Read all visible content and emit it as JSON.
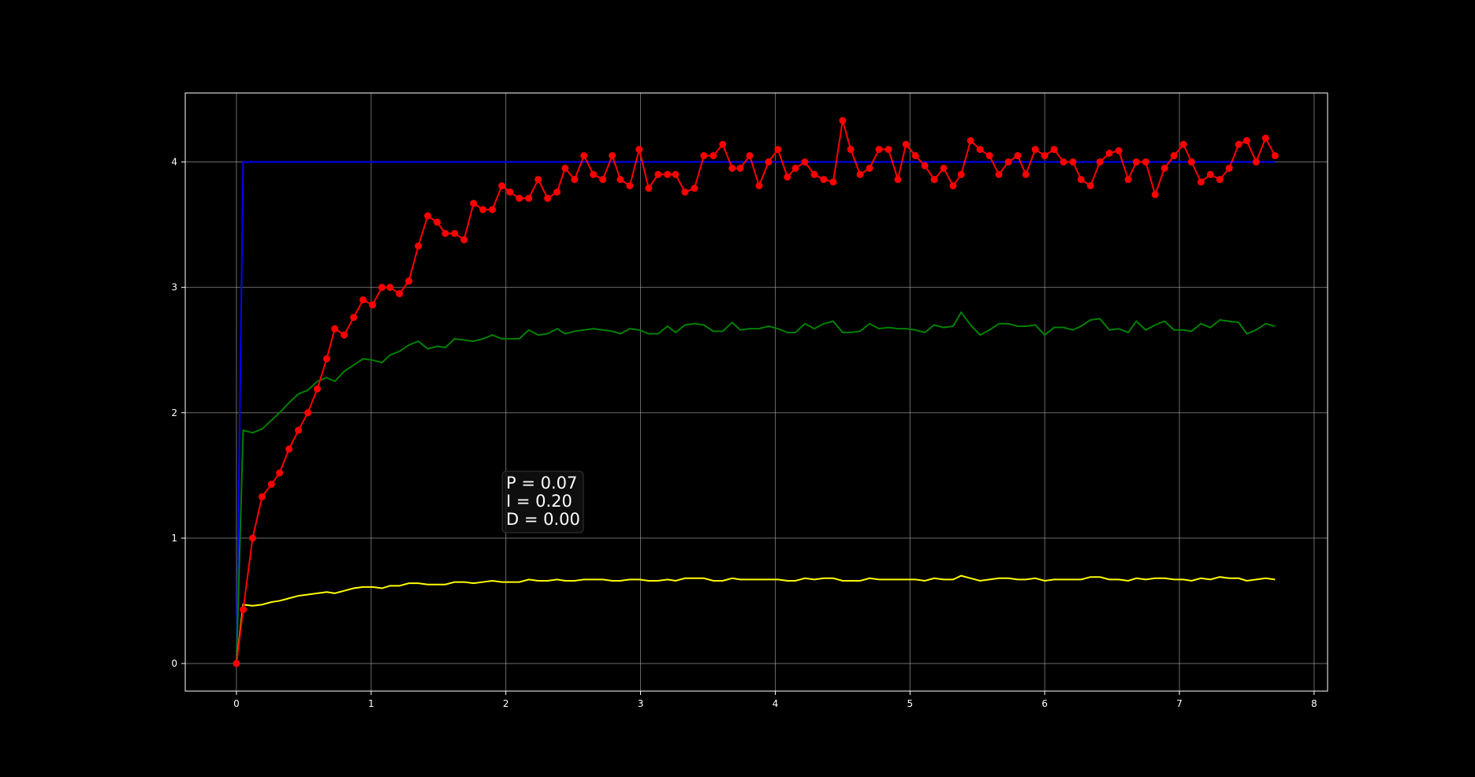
{
  "chart_data": {
    "type": "line",
    "x": [
      0,
      0.05,
      0.12,
      0.19,
      0.26,
      0.32,
      0.39,
      0.46,
      0.53,
      0.6,
      0.67,
      0.73,
      0.8,
      0.87,
      0.94,
      1.01,
      1.08,
      1.14,
      1.21,
      1.28,
      1.35,
      1.42,
      1.49,
      1.55,
      1.62,
      1.69,
      1.76,
      1.83,
      1.9,
      1.97,
      2.03,
      2.1,
      2.17,
      2.24,
      2.31,
      2.38,
      2.44,
      2.51,
      2.58,
      2.65,
      2.72,
      2.79,
      2.85,
      2.92,
      2.99,
      3.06,
      3.13,
      3.2,
      3.26,
      3.33,
      3.4,
      3.47,
      3.54,
      3.61,
      3.68,
      3.74,
      3.81,
      3.88,
      3.95,
      4.02,
      4.09,
      4.15,
      4.22,
      4.29,
      4.36,
      4.43,
      4.5,
      4.56,
      4.63,
      4.7,
      4.77,
      4.84,
      4.91,
      4.97,
      5.04,
      5.11,
      5.18,
      5.25,
      5.32,
      5.38,
      5.45,
      5.52,
      5.59,
      5.66,
      5.73,
      5.8,
      5.86,
      5.93,
      6.0,
      6.07,
      6.14,
      6.21,
      6.27,
      6.34,
      6.41,
      6.48,
      6.55,
      6.62,
      6.68,
      6.75,
      6.82,
      6.89,
      6.96,
      7.03,
      7.09,
      7.16,
      7.23,
      7.3,
      7.37,
      7.44,
      7.5,
      7.57,
      7.64,
      7.71
    ],
    "series": [
      {
        "color": "#0000ff",
        "x": [
          0,
          0.05,
          7.71
        ],
        "values": [
          0,
          4,
          4
        ]
      },
      {
        "color": "#008000",
        "values": [
          0,
          1.86,
          1.84,
          1.87,
          1.94,
          2.0,
          2.08,
          2.15,
          2.18,
          2.25,
          2.28,
          2.25,
          2.33,
          2.38,
          2.43,
          2.42,
          2.4,
          2.46,
          2.49,
          2.54,
          2.57,
          2.51,
          2.53,
          2.52,
          2.59,
          2.58,
          2.57,
          2.59,
          2.62,
          2.59,
          2.59,
          2.59,
          2.66,
          2.62,
          2.63,
          2.67,
          2.63,
          2.65,
          2.66,
          2.67,
          2.66,
          2.65,
          2.63,
          2.67,
          2.66,
          2.63,
          2.63,
          2.69,
          2.64,
          2.7,
          2.71,
          2.7,
          2.65,
          2.65,
          2.72,
          2.66,
          2.67,
          2.67,
          2.69,
          2.67,
          2.64,
          2.64,
          2.71,
          2.67,
          2.71,
          2.73,
          2.64,
          2.64,
          2.65,
          2.71,
          2.67,
          2.68,
          2.67,
          2.67,
          2.66,
          2.64,
          2.7,
          2.68,
          2.69,
          2.8,
          2.7,
          2.62,
          2.66,
          2.71,
          2.71,
          2.69,
          2.69,
          2.7,
          2.62,
          2.68,
          2.68,
          2.66,
          2.69,
          2.74,
          2.75,
          2.66,
          2.67,
          2.64,
          2.73,
          2.66,
          2.7,
          2.73,
          2.66,
          2.66,
          2.65,
          2.71,
          2.68,
          2.74,
          2.73,
          2.72,
          2.63,
          2.66,
          2.71,
          2.69
        ]
      },
      {
        "color": "#ffff00",
        "values": [
          0,
          0.47,
          0.46,
          0.47,
          0.49,
          0.5,
          0.52,
          0.54,
          0.55,
          0.56,
          0.57,
          0.56,
          0.58,
          0.6,
          0.61,
          0.61,
          0.6,
          0.62,
          0.62,
          0.64,
          0.64,
          0.63,
          0.63,
          0.63,
          0.65,
          0.65,
          0.64,
          0.65,
          0.66,
          0.65,
          0.65,
          0.65,
          0.67,
          0.66,
          0.66,
          0.67,
          0.66,
          0.66,
          0.67,
          0.67,
          0.67,
          0.66,
          0.66,
          0.67,
          0.67,
          0.66,
          0.66,
          0.67,
          0.66,
          0.68,
          0.68,
          0.68,
          0.66,
          0.66,
          0.68,
          0.67,
          0.67,
          0.67,
          0.67,
          0.67,
          0.66,
          0.66,
          0.68,
          0.67,
          0.68,
          0.68,
          0.66,
          0.66,
          0.66,
          0.68,
          0.67,
          0.67,
          0.67,
          0.67,
          0.67,
          0.66,
          0.68,
          0.67,
          0.67,
          0.7,
          0.68,
          0.66,
          0.67,
          0.68,
          0.68,
          0.67,
          0.67,
          0.68,
          0.66,
          0.67,
          0.67,
          0.67,
          0.67,
          0.69,
          0.69,
          0.67,
          0.67,
          0.66,
          0.68,
          0.67,
          0.68,
          0.68,
          0.67,
          0.67,
          0.66,
          0.68,
          0.67,
          0.69,
          0.68,
          0.68,
          0.66,
          0.67,
          0.68,
          0.67
        ]
      },
      {
        "color": "#ff0000",
        "marker": "o",
        "values": [
          0,
          0.43,
          1.0,
          1.33,
          1.43,
          1.52,
          1.71,
          1.86,
          2.0,
          2.19,
          2.43,
          2.67,
          2.62,
          2.76,
          2.9,
          2.86,
          3.0,
          3.0,
          2.95,
          3.05,
          3.33,
          3.57,
          3.52,
          3.43,
          3.43,
          3.38,
          3.67,
          3.62,
          3.62,
          3.81,
          3.76,
          3.71,
          3.71,
          3.86,
          3.71,
          3.76,
          3.95,
          3.86,
          4.05,
          3.9,
          3.86,
          4.05,
          3.86,
          3.81,
          4.1,
          3.79,
          3.9,
          3.9,
          3.9,
          3.76,
          3.79,
          4.05,
          4.05,
          4.14,
          3.95,
          3.95,
          4.05,
          3.81,
          4.0,
          4.1,
          3.88,
          3.95,
          4.0,
          3.9,
          3.86,
          3.84,
          4.33,
          4.1,
          3.9,
          3.95,
          4.1,
          4.1,
          3.86,
          4.14,
          4.05,
          3.97,
          3.86,
          3.95,
          3.81,
          3.9,
          4.17,
          4.1,
          4.05,
          3.9,
          4.0,
          4.05,
          3.9,
          4.1,
          4.05,
          4.1,
          4.0,
          4.0,
          3.86,
          3.81,
          4.0,
          4.07,
          4.09,
          3.86,
          4.0,
          4.0,
          3.74,
          3.95,
          4.05,
          4.14,
          4.0,
          3.84,
          3.9,
          3.86,
          3.95,
          4.14,
          4.17,
          4.0,
          4.19,
          4.05
        ]
      }
    ],
    "annotation": [
      "P = 0.07",
      "I = 0.20",
      "D = 0.00"
    ],
    "xlim": [
      -0.38,
      8.1
    ],
    "ylim": [
      -0.22,
      4.55
    ],
    "xticks": [
      0,
      1,
      2,
      3,
      4,
      5,
      6,
      7,
      8
    ],
    "yticks": [
      0,
      1,
      2,
      3,
      4
    ],
    "grid": true
  }
}
